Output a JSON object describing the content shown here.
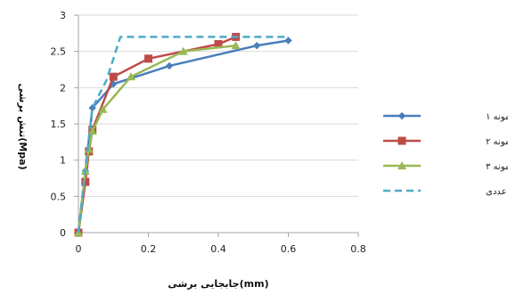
{
  "chart_data": {
    "type": "line",
    "xlabel": "(mm)جابجایی برشی",
    "ylabel": "(Mpa)تنش برشی",
    "xlim": [
      0,
      0.8
    ],
    "ylim": [
      0,
      3
    ],
    "xticks": [
      0,
      0.2,
      0.4,
      0.6,
      0.8
    ],
    "yticks": [
      0,
      0.5,
      1,
      1.5,
      2,
      2.5,
      3
    ],
    "grid": "horizontal",
    "legend_position": "right",
    "series": [
      {
        "name": "نمونه ۱",
        "color": "#4a7ebb",
        "marker": "diamond",
        "dash": "solid",
        "x": [
          0,
          0.02,
          0.04,
          0.1,
          0.26,
          0.51,
          0.6
        ],
        "y": [
          0,
          0.85,
          1.72,
          2.05,
          2.3,
          2.58,
          2.65
        ]
      },
      {
        "name": "نمونه ۲",
        "color": "#be4b48",
        "marker": "square",
        "dash": "solid",
        "x": [
          0,
          0.02,
          0.03,
          0.04,
          0.1,
          0.2,
          0.4,
          0.45
        ],
        "y": [
          0,
          0.7,
          1.12,
          1.42,
          2.15,
          2.4,
          2.6,
          2.7
        ]
      },
      {
        "name": "نمونه ۳",
        "color": "#98b954",
        "marker": "triangle",
        "dash": "solid",
        "x": [
          0,
          0.02,
          0.03,
          0.04,
          0.07,
          0.15,
          0.3,
          0.45
        ],
        "y": [
          0,
          0.85,
          1.15,
          1.4,
          1.7,
          2.15,
          2.5,
          2.58
        ]
      },
      {
        "name": "مدلسازی عددی",
        "color": "#4bacc6",
        "marker": "none",
        "dash": "dashed",
        "x": [
          0,
          0.02,
          0.04,
          0.08,
          0.12,
          0.6
        ],
        "y": [
          0,
          0.9,
          1.72,
          2.1,
          2.7,
          2.7
        ]
      }
    ]
  }
}
